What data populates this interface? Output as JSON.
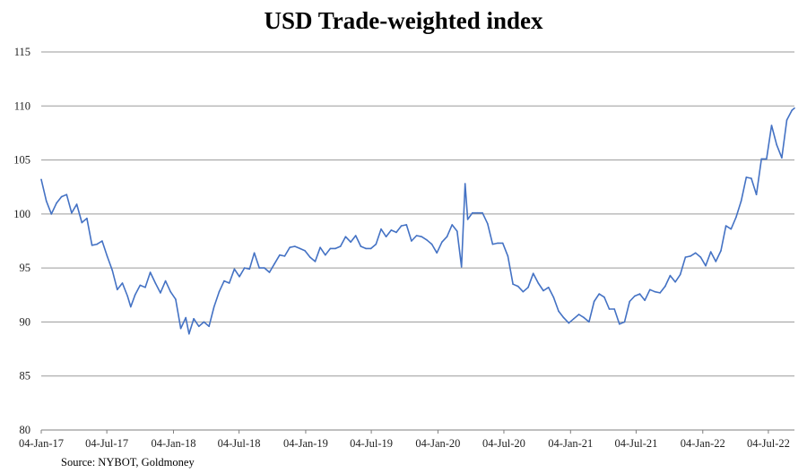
{
  "chart_data": {
    "type": "line",
    "title": "USD Trade-weighted index",
    "xlabel": "",
    "ylabel": "",
    "ylim": [
      80,
      115
    ],
    "yticks": [
      80,
      85,
      90,
      95,
      100,
      105,
      110,
      115
    ],
    "xticks": [
      "04-Jan-17",
      "04-Jul-17",
      "04-Jan-18",
      "04-Jul-18",
      "04-Jan-19",
      "04-Jul-19",
      "04-Jan-20",
      "04-Jul-20",
      "04-Jan-21",
      "04-Jul-21",
      "04-Jan-22",
      "04-Jul-22"
    ],
    "grid": "horizontal",
    "line_color": "#4472c4",
    "series": [
      {
        "points": [
          [
            "2017-01-04",
            103.2
          ],
          [
            "2017-01-18",
            101.2
          ],
          [
            "2017-02-01",
            100.0
          ],
          [
            "2017-02-15",
            101.0
          ],
          [
            "2017-03-01",
            101.6
          ],
          [
            "2017-03-15",
            101.8
          ],
          [
            "2017-03-29",
            100.1
          ],
          [
            "2017-04-12",
            100.9
          ],
          [
            "2017-04-26",
            99.2
          ],
          [
            "2017-05-10",
            99.6
          ],
          [
            "2017-05-24",
            97.1
          ],
          [
            "2017-06-07",
            97.2
          ],
          [
            "2017-06-21",
            97.5
          ],
          [
            "2017-07-05",
            96.1
          ],
          [
            "2017-07-19",
            94.8
          ],
          [
            "2017-08-02",
            93.0
          ],
          [
            "2017-08-16",
            93.6
          ],
          [
            "2017-08-30",
            92.4
          ],
          [
            "2017-09-08",
            91.4
          ],
          [
            "2017-09-20",
            92.5
          ],
          [
            "2017-10-04",
            93.4
          ],
          [
            "2017-10-18",
            93.2
          ],
          [
            "2017-11-01",
            94.6
          ],
          [
            "2017-11-15",
            93.6
          ],
          [
            "2017-11-29",
            92.7
          ],
          [
            "2017-12-13",
            93.8
          ],
          [
            "2017-12-27",
            92.8
          ],
          [
            "2018-01-10",
            92.1
          ],
          [
            "2018-01-24",
            89.4
          ],
          [
            "2018-02-07",
            90.4
          ],
          [
            "2018-02-16",
            88.9
          ],
          [
            "2018-03-01",
            90.3
          ],
          [
            "2018-03-15",
            89.6
          ],
          [
            "2018-03-29",
            90.0
          ],
          [
            "2018-04-12",
            89.6
          ],
          [
            "2018-04-26",
            91.4
          ],
          [
            "2018-05-10",
            92.8
          ],
          [
            "2018-05-24",
            93.8
          ],
          [
            "2018-06-07",
            93.6
          ],
          [
            "2018-06-21",
            94.9
          ],
          [
            "2018-07-05",
            94.2
          ],
          [
            "2018-07-19",
            95.0
          ],
          [
            "2018-08-02",
            94.9
          ],
          [
            "2018-08-15",
            96.4
          ],
          [
            "2018-08-29",
            95.0
          ],
          [
            "2018-09-12",
            95.0
          ],
          [
            "2018-09-26",
            94.6
          ],
          [
            "2018-10-10",
            95.4
          ],
          [
            "2018-10-24",
            96.2
          ],
          [
            "2018-11-07",
            96.1
          ],
          [
            "2018-11-21",
            96.9
          ],
          [
            "2018-12-05",
            97.0
          ],
          [
            "2018-12-19",
            96.8
          ],
          [
            "2019-01-02",
            96.6
          ],
          [
            "2019-01-16",
            96.0
          ],
          [
            "2019-01-30",
            95.6
          ],
          [
            "2019-02-13",
            96.9
          ],
          [
            "2019-02-27",
            96.2
          ],
          [
            "2019-03-13",
            96.8
          ],
          [
            "2019-03-27",
            96.8
          ],
          [
            "2019-04-10",
            97.0
          ],
          [
            "2019-04-24",
            97.9
          ],
          [
            "2019-05-08",
            97.4
          ],
          [
            "2019-05-22",
            98.0
          ],
          [
            "2019-06-05",
            97.0
          ],
          [
            "2019-06-19",
            96.8
          ],
          [
            "2019-07-03",
            96.8
          ],
          [
            "2019-07-17",
            97.2
          ],
          [
            "2019-07-31",
            98.6
          ],
          [
            "2019-08-14",
            97.9
          ],
          [
            "2019-08-28",
            98.5
          ],
          [
            "2019-09-11",
            98.3
          ],
          [
            "2019-09-25",
            98.9
          ],
          [
            "2019-10-09",
            99.0
          ],
          [
            "2019-10-23",
            97.5
          ],
          [
            "2019-11-06",
            98.0
          ],
          [
            "2019-11-20",
            97.9
          ],
          [
            "2019-12-04",
            97.6
          ],
          [
            "2019-12-18",
            97.2
          ],
          [
            "2020-01-01",
            96.4
          ],
          [
            "2020-01-15",
            97.4
          ],
          [
            "2020-01-29",
            97.9
          ],
          [
            "2020-02-12",
            99.0
          ],
          [
            "2020-02-26",
            98.4
          ],
          [
            "2020-03-09",
            95.1
          ],
          [
            "2020-03-19",
            102.8
          ],
          [
            "2020-03-26",
            99.5
          ],
          [
            "2020-04-08",
            100.1
          ],
          [
            "2020-04-22",
            100.1
          ],
          [
            "2020-05-06",
            100.1
          ],
          [
            "2020-05-20",
            99.1
          ],
          [
            "2020-06-03",
            97.2
          ],
          [
            "2020-06-17",
            97.3
          ],
          [
            "2020-07-01",
            97.3
          ],
          [
            "2020-07-15",
            96.1
          ],
          [
            "2020-07-29",
            93.5
          ],
          [
            "2020-08-12",
            93.3
          ],
          [
            "2020-08-26",
            92.8
          ],
          [
            "2020-09-09",
            93.2
          ],
          [
            "2020-09-23",
            94.5
          ],
          [
            "2020-10-07",
            93.6
          ],
          [
            "2020-10-21",
            92.9
          ],
          [
            "2020-11-04",
            93.2
          ],
          [
            "2020-11-18",
            92.3
          ],
          [
            "2020-12-02",
            91.0
          ],
          [
            "2020-12-16",
            90.4
          ],
          [
            "2020-12-30",
            89.9
          ],
          [
            "2021-01-13",
            90.3
          ],
          [
            "2021-01-27",
            90.7
          ],
          [
            "2021-02-10",
            90.4
          ],
          [
            "2021-02-24",
            90.0
          ],
          [
            "2021-03-10",
            91.9
          ],
          [
            "2021-03-24",
            92.6
          ],
          [
            "2021-04-07",
            92.3
          ],
          [
            "2021-04-21",
            91.2
          ],
          [
            "2021-05-05",
            91.2
          ],
          [
            "2021-05-19",
            89.8
          ],
          [
            "2021-06-02",
            90.0
          ],
          [
            "2021-06-16",
            91.9
          ],
          [
            "2021-06-30",
            92.4
          ],
          [
            "2021-07-14",
            92.6
          ],
          [
            "2021-07-28",
            92.0
          ],
          [
            "2021-08-11",
            93.0
          ],
          [
            "2021-08-25",
            92.8
          ],
          [
            "2021-09-08",
            92.7
          ],
          [
            "2021-09-22",
            93.3
          ],
          [
            "2021-10-06",
            94.3
          ],
          [
            "2021-10-20",
            93.7
          ],
          [
            "2021-11-03",
            94.4
          ],
          [
            "2021-11-17",
            96.0
          ],
          [
            "2021-12-01",
            96.1
          ],
          [
            "2021-12-15",
            96.4
          ],
          [
            "2021-12-29",
            96.0
          ],
          [
            "2022-01-12",
            95.2
          ],
          [
            "2022-01-26",
            96.5
          ],
          [
            "2022-02-09",
            95.6
          ],
          [
            "2022-02-23",
            96.6
          ],
          [
            "2022-03-09",
            98.9
          ],
          [
            "2022-03-23",
            98.6
          ],
          [
            "2022-04-06",
            99.7
          ],
          [
            "2022-04-20",
            101.2
          ],
          [
            "2022-05-04",
            103.4
          ],
          [
            "2022-05-18",
            103.3
          ],
          [
            "2022-06-01",
            101.8
          ],
          [
            "2022-06-15",
            105.1
          ],
          [
            "2022-06-29",
            105.1
          ],
          [
            "2022-07-13",
            108.2
          ],
          [
            "2022-07-27",
            106.4
          ],
          [
            "2022-08-10",
            105.2
          ],
          [
            "2022-08-24",
            108.7
          ],
          [
            "2022-09-07",
            109.6
          ],
          [
            "2022-09-14",
            109.8
          ]
        ]
      }
    ],
    "source": "Source: NYBOT, Goldmoney"
  }
}
